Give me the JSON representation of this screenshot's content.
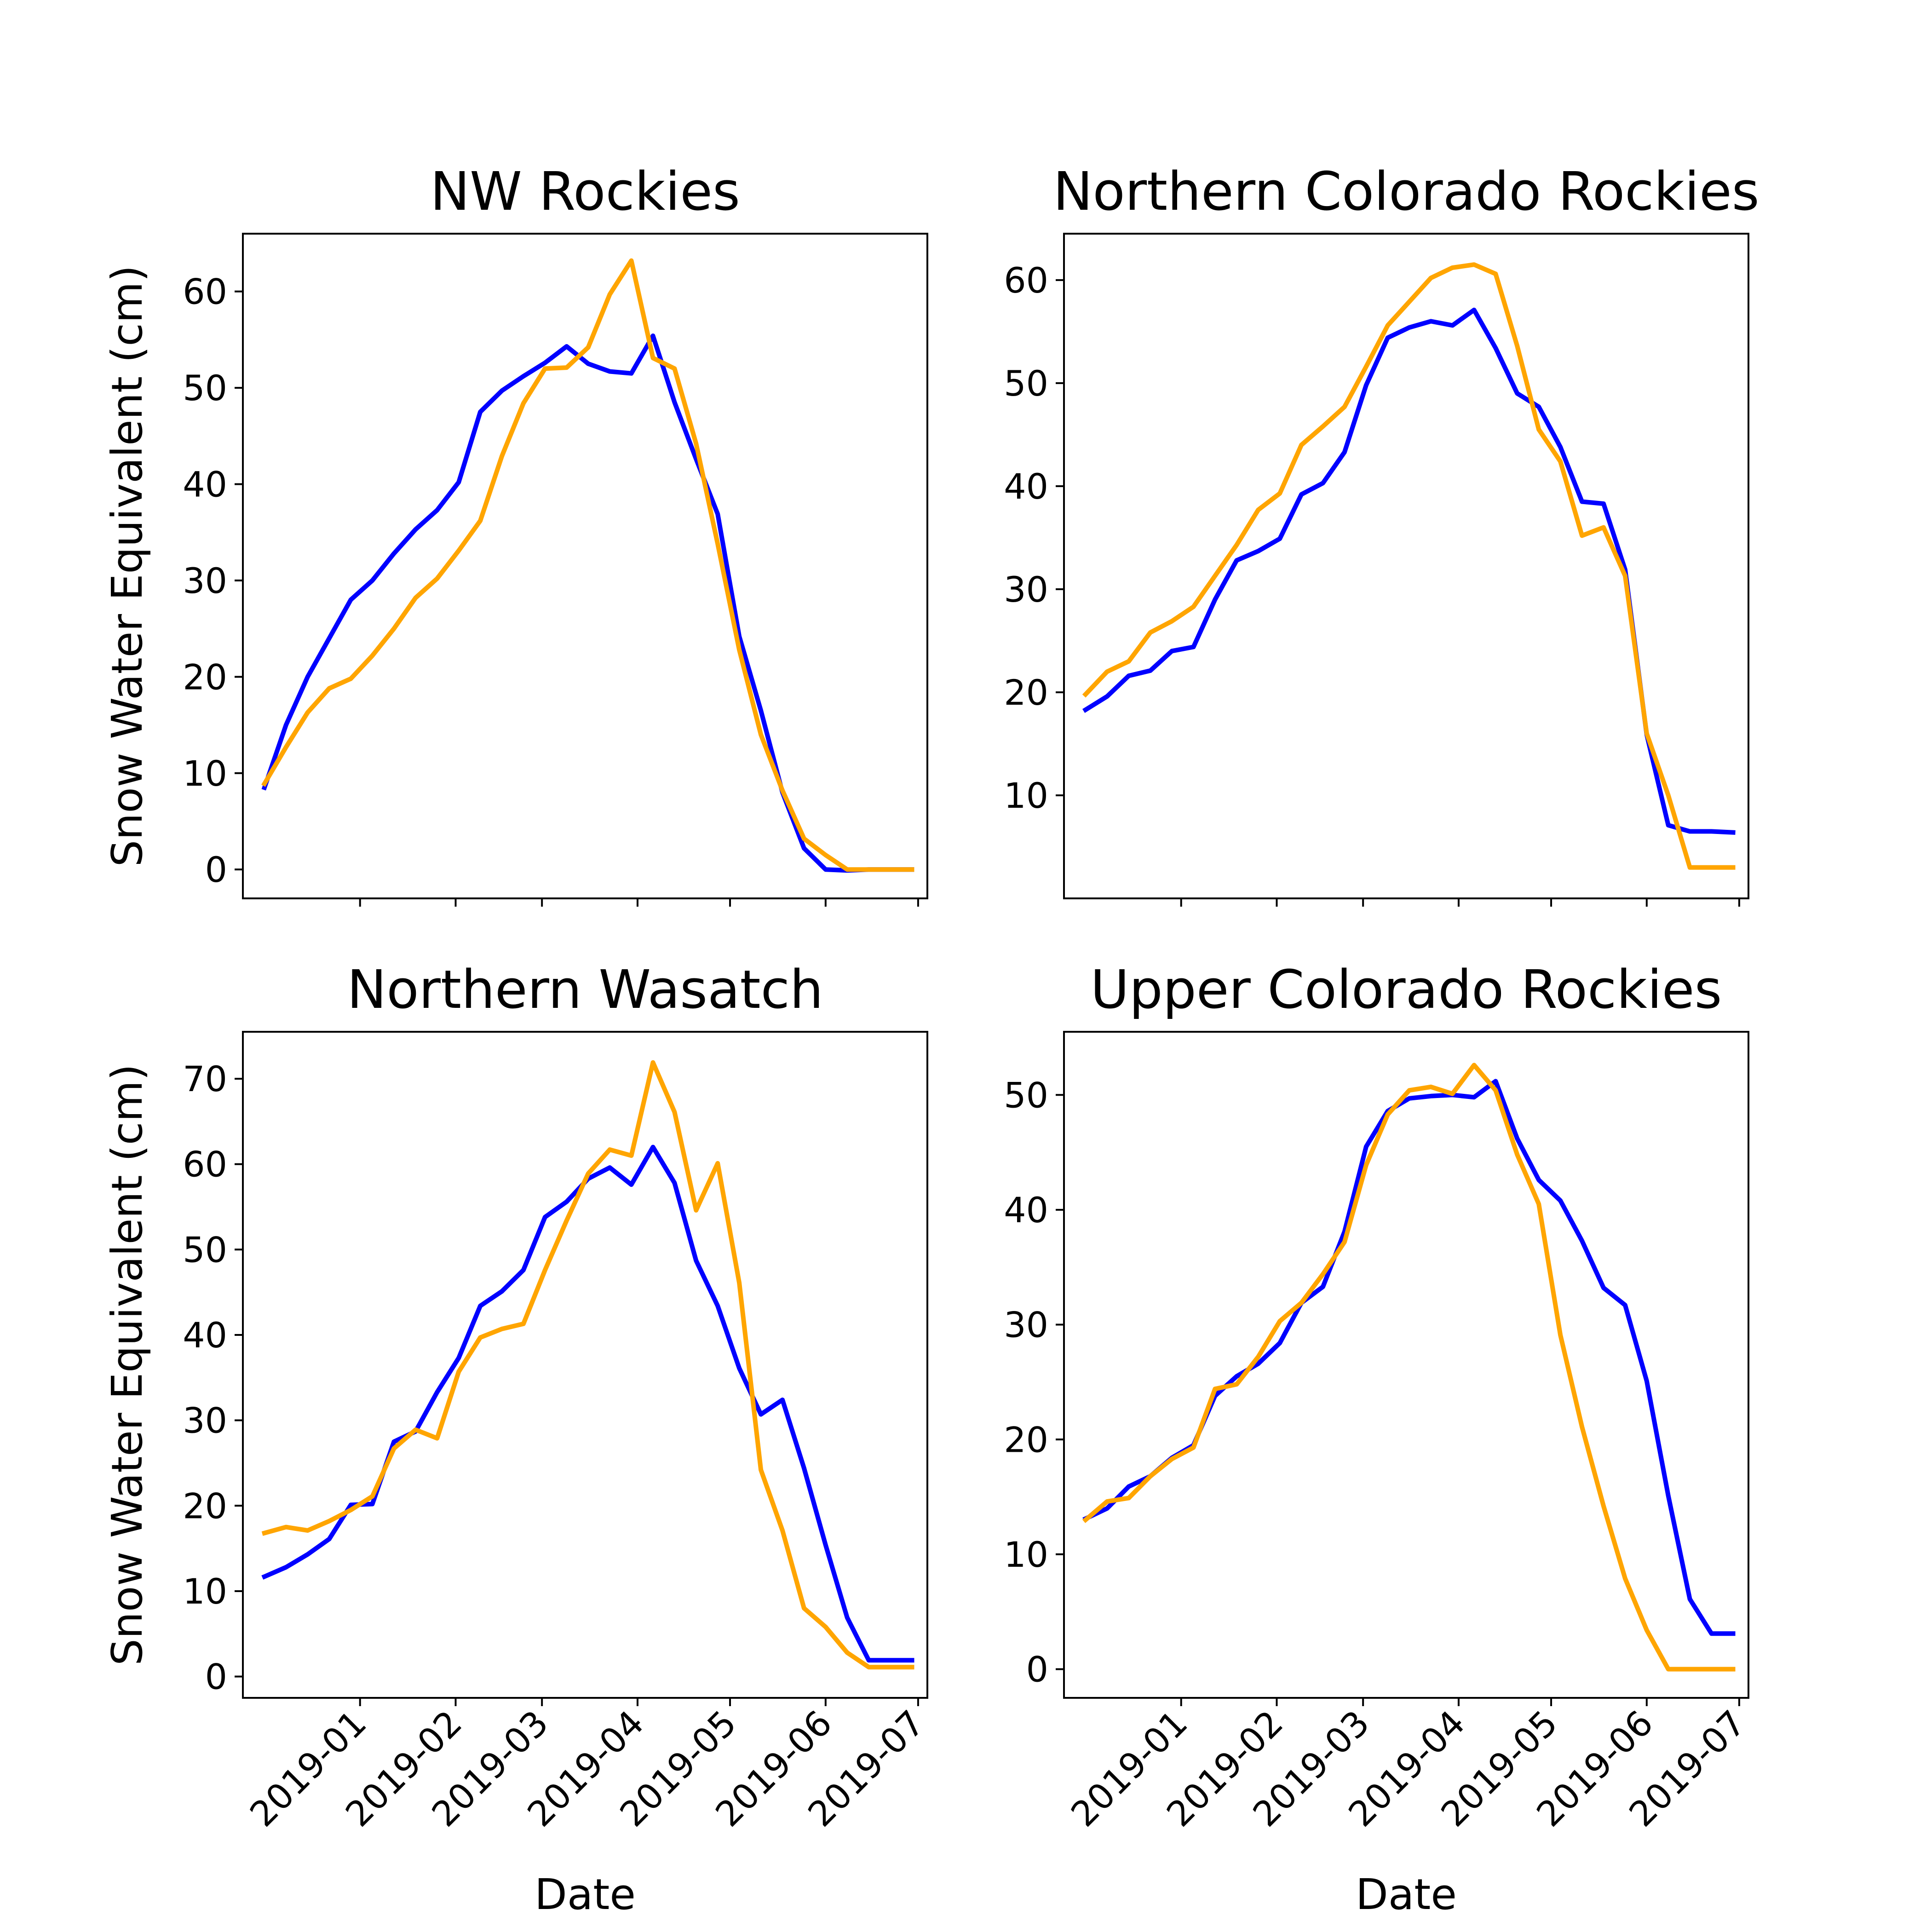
{
  "colors": {
    "blue_series": "#0000ff",
    "orange_series": "#ffa500",
    "axes": "#000000",
    "background": "#ffffff"
  },
  "chart_data": [
    {
      "type": "line",
      "title": "NW Rockies",
      "xlabel": "",
      "ylabel": "Snow Water Equivalent (cm)",
      "ylim": [
        -3,
        66
      ],
      "yticks": [
        "0",
        "10",
        "20",
        "30",
        "40",
        "50",
        "60"
      ],
      "xlim": [
        "2018-11-24",
        "2019-07-04"
      ],
      "xticks": [
        "2019-01",
        "2019-02",
        "2019-03",
        "2019-04",
        "2019-05",
        "2019-06",
        "2019-07"
      ],
      "xticklabels_visible": false,
      "grid": false,
      "x": [
        "2018-12-01",
        "2018-12-08",
        "2018-12-15",
        "2018-12-22",
        "2018-12-29",
        "2019-01-05",
        "2019-01-12",
        "2019-01-19",
        "2019-01-26",
        "2019-02-02",
        "2019-02-09",
        "2019-02-16",
        "2019-02-23",
        "2019-03-02",
        "2019-03-09",
        "2019-03-16",
        "2019-03-23",
        "2019-03-30",
        "2019-04-06",
        "2019-04-13",
        "2019-04-20",
        "2019-04-27",
        "2019-05-04",
        "2019-05-11",
        "2019-05-18",
        "2019-05-25",
        "2019-06-01",
        "2019-06-08",
        "2019-06-15",
        "2019-06-22",
        "2019-06-29"
      ],
      "series": [
        {
          "color": "#0000ff",
          "values": [
            8.5,
            15,
            20,
            24,
            28,
            30,
            32.8,
            35.3,
            37.3,
            40.2,
            47.5,
            49.7,
            51.2,
            52.6,
            54.3,
            52.5,
            51.7,
            51.5,
            55.4,
            48.5,
            42.6,
            36.9,
            24.2,
            16.5,
            8,
            2.2,
            0,
            -0.1,
            0,
            0,
            0
          ]
        },
        {
          "color": "#ffa500",
          "values": [
            8.9,
            12.7,
            16.3,
            18.8,
            19.8,
            22.2,
            25,
            28.2,
            30.2,
            33.1,
            36.2,
            42.9,
            48.4,
            52,
            52.1,
            54.2,
            59.7,
            63.2,
            53.1,
            52,
            44.2,
            33.8,
            22.8,
            14,
            8.2,
            3.2,
            1.5,
            0,
            0,
            0,
            0
          ]
        }
      ]
    },
    {
      "type": "line",
      "title": "Northern Colorado Rockies",
      "xlabel": "",
      "ylabel": "",
      "ylim": [
        0,
        64.5
      ],
      "yticks": [
        "10",
        "20",
        "30",
        "40",
        "50",
        "60"
      ],
      "xlim": [
        "2018-11-24",
        "2019-07-04"
      ],
      "xticks": [
        "2019-01",
        "2019-02",
        "2019-03",
        "2019-04",
        "2019-05",
        "2019-06",
        "2019-07"
      ],
      "xticklabels_visible": false,
      "grid": false,
      "x": [
        "2018-12-01",
        "2018-12-08",
        "2018-12-15",
        "2018-12-22",
        "2018-12-29",
        "2019-01-05",
        "2019-01-12",
        "2019-01-19",
        "2019-01-26",
        "2019-02-02",
        "2019-02-09",
        "2019-02-16",
        "2019-02-23",
        "2019-03-02",
        "2019-03-09",
        "2019-03-16",
        "2019-03-23",
        "2019-03-30",
        "2019-04-06",
        "2019-04-13",
        "2019-04-20",
        "2019-04-27",
        "2019-05-04",
        "2019-05-11",
        "2019-05-18",
        "2019-05-25",
        "2019-06-01",
        "2019-06-08",
        "2019-06-15",
        "2019-06-22",
        "2019-06-29"
      ],
      "series": [
        {
          "color": "#0000ff",
          "values": [
            18.3,
            19.6,
            21.6,
            22.1,
            24,
            24.4,
            29,
            32.8,
            33.7,
            34.9,
            39.2,
            40.3,
            43.3,
            49.8,
            54.4,
            55.4,
            56,
            55.6,
            57.1,
            53.4,
            49,
            47.7,
            43.8,
            38.5,
            38.3,
            31.9,
            15.9,
            7.1,
            6.5,
            6.5,
            6.4
          ]
        },
        {
          "color": "#ffa500",
          "values": [
            19.8,
            22,
            23,
            25.8,
            26.9,
            28.3,
            31.3,
            34.3,
            37.7,
            39.3,
            44,
            45.8,
            47.7,
            51.6,
            55.6,
            57.9,
            60.2,
            61.2,
            61.5,
            60.6,
            53.6,
            45.5,
            42.4,
            35.2,
            36,
            31.3,
            16,
            10,
            3,
            3,
            3
          ]
        }
      ]
    },
    {
      "type": "line",
      "title": "Northern Wasatch",
      "xlabel": "Date",
      "ylabel": "Snow Water Equivalent (cm)",
      "ylim": [
        -2.5,
        75.5
      ],
      "yticks": [
        "0",
        "10",
        "20",
        "30",
        "40",
        "50",
        "60",
        "70"
      ],
      "xlim": [
        "2018-11-24",
        "2019-07-04"
      ],
      "xticks": [
        "2019-01",
        "2019-02",
        "2019-03",
        "2019-04",
        "2019-05",
        "2019-06",
        "2019-07"
      ],
      "xticklabels_visible": true,
      "grid": false,
      "x": [
        "2018-12-01",
        "2018-12-08",
        "2018-12-15",
        "2018-12-22",
        "2018-12-29",
        "2019-01-05",
        "2019-01-12",
        "2019-01-19",
        "2019-01-26",
        "2019-02-02",
        "2019-02-09",
        "2019-02-16",
        "2019-02-23",
        "2019-03-02",
        "2019-03-09",
        "2019-03-16",
        "2019-03-23",
        "2019-03-30",
        "2019-04-06",
        "2019-04-13",
        "2019-04-20",
        "2019-04-27",
        "2019-05-04",
        "2019-05-11",
        "2019-05-18",
        "2019-05-25",
        "2019-06-01",
        "2019-06-08",
        "2019-06-15",
        "2019-06-22",
        "2019-06-29"
      ],
      "series": [
        {
          "color": "#0000ff",
          "values": [
            11.7,
            12.8,
            14.3,
            16.1,
            20.1,
            20.2,
            27.5,
            28.7,
            33.3,
            37.3,
            43.4,
            45.1,
            47.6,
            53.8,
            55.6,
            58.3,
            59.6,
            57.6,
            62,
            57.8,
            48.7,
            43.4,
            36.1,
            30.7,
            32.4,
            24.4,
            15.4,
            6.9,
            1.9,
            1.9,
            1.9
          ]
        },
        {
          "color": "#ffa500",
          "values": [
            16.8,
            17.5,
            17.1,
            18.2,
            19.5,
            21.1,
            26.7,
            28.9,
            27.9,
            35.7,
            39.7,
            40.7,
            41.3,
            47.6,
            53.4,
            58.9,
            61.7,
            61,
            71.9,
            66.1,
            54.6,
            60.1,
            46.1,
            24.2,
            17.1,
            8,
            5.8,
            2.8,
            1.1,
            1.1,
            1.1
          ]
        }
      ]
    },
    {
      "type": "line",
      "title": "Upper Colorado Rockies",
      "xlabel": "Date",
      "ylabel": "",
      "ylim": [
        -2.5,
        55.5
      ],
      "yticks": [
        "0",
        "10",
        "20",
        "30",
        "40",
        "50"
      ],
      "xlim": [
        "2018-11-24",
        "2019-07-04"
      ],
      "xticks": [
        "2019-01",
        "2019-02",
        "2019-03",
        "2019-04",
        "2019-05",
        "2019-06",
        "2019-07"
      ],
      "xticklabels_visible": true,
      "grid": false,
      "x": [
        "2018-12-01",
        "2018-12-08",
        "2018-12-15",
        "2018-12-22",
        "2018-12-29",
        "2019-01-05",
        "2019-01-12",
        "2019-01-19",
        "2019-01-26",
        "2019-02-02",
        "2019-02-09",
        "2019-02-16",
        "2019-02-23",
        "2019-03-02",
        "2019-03-09",
        "2019-03-16",
        "2019-03-23",
        "2019-03-30",
        "2019-04-06",
        "2019-04-13",
        "2019-04-20",
        "2019-04-27",
        "2019-05-04",
        "2019-05-11",
        "2019-05-18",
        "2019-05-25",
        "2019-06-01",
        "2019-06-08",
        "2019-06-15",
        "2019-06-22",
        "2019-06-29"
      ],
      "series": [
        {
          "color": "#0000ff",
          "values": [
            13.1,
            14,
            15.9,
            16.8,
            18.4,
            19.5,
            23.8,
            25.5,
            26.6,
            28.4,
            31.9,
            33.3,
            38.1,
            45.5,
            48.6,
            49.7,
            49.9,
            50,
            49.8,
            51.2,
            46.2,
            42.6,
            40.8,
            37.3,
            33.2,
            31.7,
            25.1,
            15.1,
            6.1,
            3.1,
            3.1
          ]
        },
        {
          "color": "#ffa500",
          "values": [
            13,
            14.6,
            14.9,
            16.8,
            18.3,
            19.3,
            24.4,
            24.8,
            27.2,
            30.3,
            31.9,
            34.4,
            37.2,
            43.9,
            48.3,
            50.4,
            50.7,
            50.1,
            52.6,
            50.4,
            44.8,
            40.5,
            29.1,
            21.1,
            14.2,
            7.9,
            3.4,
            0,
            0,
            0,
            0
          ]
        }
      ]
    }
  ]
}
